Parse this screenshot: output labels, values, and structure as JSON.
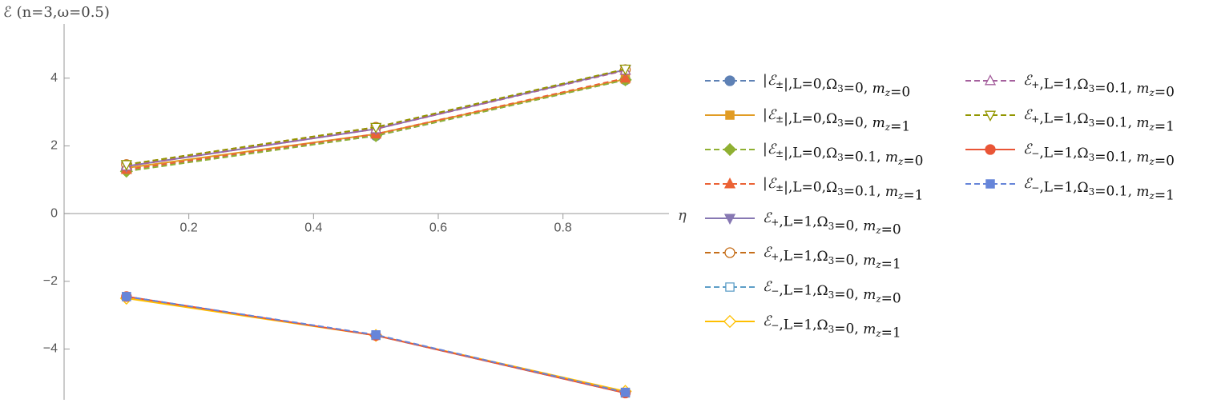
{
  "chart_data": {
    "type": "line",
    "y_label": "ℰ (n=3,ω=0.5)",
    "x_label": "η",
    "x": [
      0.1,
      0.5,
      0.9
    ],
    "xlim": [
      0,
      0.97
    ],
    "ylim": [
      -5.5,
      5.6
    ],
    "xticks": [
      0.2,
      0.4,
      0.6,
      0.8
    ],
    "yticks": [
      -4,
      -2,
      0,
      2,
      4
    ],
    "series": [
      {
        "name": "|ℰ±|,L=0,Ω3=0, mz=0",
        "color": "#5e81b5",
        "dash": true,
        "marker": "circle",
        "filled": true,
        "values": [
          1.3,
          2.3,
          3.95
        ]
      },
      {
        "name": "|ℰ±|,L=0,Ω3=0, mz=1",
        "color": "#e19c24",
        "dash": false,
        "marker": "square",
        "filled": true,
        "values": [
          1.35,
          2.35,
          3.97
        ]
      },
      {
        "name": "|ℰ±|,L=0,Ω3=0.1, mz=0",
        "color": "#8fb032",
        "dash": true,
        "marker": "diamond",
        "filled": true,
        "values": [
          1.25,
          2.3,
          3.95
        ]
      },
      {
        "name": "|ℰ±|,L=0,Ω3=0.1, mz=1",
        "color": "#eb6235",
        "dash": true,
        "marker": "triangle",
        "filled": true,
        "values": [
          1.3,
          2.35,
          4.0
        ]
      },
      {
        "name": "ℰ+,L=1,Ω3=0, mz=0",
        "color": "#8778b3",
        "dash": false,
        "marker": "triangle-down",
        "filled": true,
        "values": [
          1.4,
          2.5,
          4.25
        ]
      },
      {
        "name": "ℰ+,L=1,Ω3=0, mz=1",
        "color": "#c56e1a",
        "dash": true,
        "marker": "circle",
        "filled": false,
        "values": [
          1.45,
          2.55,
          4.25
        ]
      },
      {
        "name": "ℰ−,L=1,Ω3=0, mz=0",
        "color": "#5d9ec7",
        "dash": true,
        "marker": "square",
        "filled": false,
        "values": [
          -2.45,
          -3.6,
          -5.3
        ]
      },
      {
        "name": "ℰ−,L=1,Ω3=0, mz=1",
        "color": "#ffbf00",
        "dash": false,
        "marker": "diamond",
        "filled": false,
        "values": [
          -2.5,
          -3.6,
          -5.25
        ]
      },
      {
        "name": "ℰ+,L=1,Ω3=0.1, mz=0",
        "color": "#a5609d",
        "dash": true,
        "marker": "triangle",
        "filled": false,
        "values": [
          1.4,
          2.5,
          4.23
        ]
      },
      {
        "name": "ℰ+,L=1,Ω3=0.1, mz=1",
        "color": "#929600",
        "dash": true,
        "marker": "triangle-down",
        "filled": false,
        "values": [
          1.45,
          2.55,
          4.27
        ]
      },
      {
        "name": "ℰ−,L=1,Ω3=0.1, mz=0",
        "color": "#e95536",
        "dash": false,
        "marker": "circle",
        "filled": true,
        "values": [
          -2.45,
          -3.6,
          -5.3
        ]
      },
      {
        "name": "ℰ−,L=1,Ω3=0.1, mz=1",
        "color": "#6685d9",
        "dash": true,
        "marker": "square",
        "filled": true,
        "values": [
          -2.45,
          -3.58,
          -5.28
        ]
      }
    ]
  }
}
